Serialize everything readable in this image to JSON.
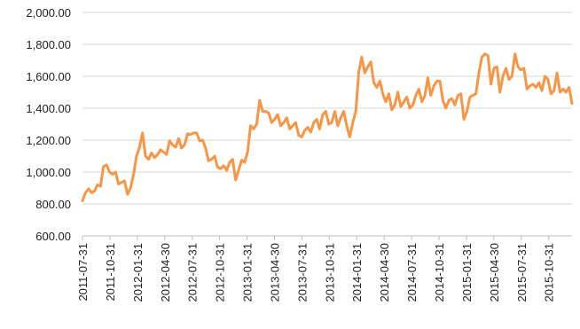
{
  "chart_data": {
    "type": "line",
    "title": "",
    "xlabel": "",
    "ylabel": "",
    "ylim": [
      600,
      2000
    ],
    "y_ticks": [
      "600.00",
      "800.00",
      "1,000.00",
      "1,200.00",
      "1,400.00",
      "1,600.00",
      "1,800.00",
      "2,000.00"
    ],
    "y_tick_values": [
      600,
      800,
      1000,
      1200,
      1400,
      1600,
      1800,
      2000
    ],
    "x_ticks": [
      "2011-07-31",
      "2011-10-31",
      "2012-01-31",
      "2012-04-30",
      "2012-07-31",
      "2012-10-31",
      "2013-01-31",
      "2013-04-30",
      "2013-07-31",
      "2013-10-31",
      "2014-01-31",
      "2014-04-30",
      "2014-07-31",
      "2014-10-31",
      "2015-01-31",
      "2015-04-30",
      "2015-07-31",
      "2015-10-31"
    ],
    "grid": "horizontal",
    "legend": "none",
    "color": "#F79646",
    "series": [
      {
        "values": [
          820,
          870,
          895,
          870,
          880,
          920,
          910,
          1035,
          1045,
          1000,
          985,
          1000,
          925,
          935,
          945,
          860,
          900,
          985,
          1100,
          1155,
          1245,
          1100,
          1080,
          1120,
          1090,
          1110,
          1140,
          1125,
          1110,
          1195,
          1170,
          1155,
          1210,
          1150,
          1170,
          1240,
          1235,
          1245,
          1245,
          1195,
          1200,
          1150,
          1070,
          1080,
          1100,
          1030,
          1020,
          1040,
          1010,
          1060,
          1080,
          950,
          1010,
          1075,
          1060,
          1130,
          1290,
          1270,
          1300,
          1450,
          1380,
          1380,
          1370,
          1310,
          1330,
          1360,
          1290,
          1310,
          1340,
          1270,
          1290,
          1310,
          1230,
          1220,
          1260,
          1280,
          1250,
          1310,
          1330,
          1270,
          1360,
          1380,
          1300,
          1310,
          1380,
          1290,
          1340,
          1380,
          1290,
          1220,
          1310,
          1380,
          1630,
          1720,
          1620,
          1660,
          1690,
          1560,
          1530,
          1570,
          1490,
          1440,
          1490,
          1390,
          1420,
          1500,
          1410,
          1440,
          1470,
          1400,
          1420,
          1480,
          1520,
          1440,
          1480,
          1590,
          1480,
          1540,
          1570,
          1570,
          1450,
          1400,
          1450,
          1460,
          1420,
          1480,
          1490,
          1330,
          1380,
          1470,
          1480,
          1490,
          1620,
          1720,
          1740,
          1730,
          1550,
          1650,
          1660,
          1500,
          1600,
          1650,
          1580,
          1600,
          1740,
          1660,
          1640,
          1650,
          1520,
          1540,
          1550,
          1530,
          1560,
          1510,
          1600,
          1580,
          1490,
          1510,
          1620,
          1500,
          1520,
          1500,
          1530,
          1430
        ]
      }
    ]
  }
}
